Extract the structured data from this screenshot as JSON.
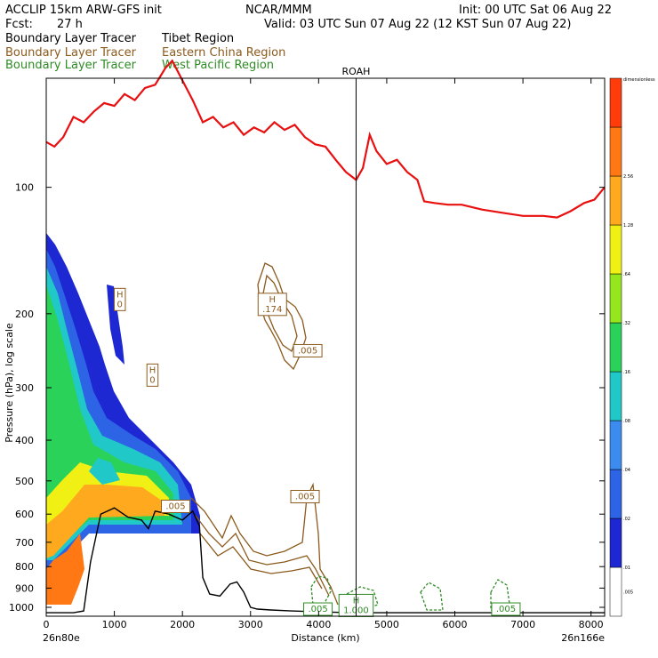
{
  "header": {
    "model": "ACCLIP 15km ARW-GFS init",
    "org": "NCAR/MMM",
    "init": "Init: 00 UTC Sat 06 Aug 22",
    "fcst_label": "Fcst:",
    "fcst_value": "27 h",
    "valid": "Valid: 03 UTC Sun 07 Aug 22 (12 KST Sun 07 Aug 22)"
  },
  "legend": [
    {
      "left": "Boundary Layer Tracer",
      "right": "Tibet Region",
      "color": "#000000"
    },
    {
      "left": "Boundary Layer Tracer",
      "right": "Eastern China Region",
      "color": "#8b5a1c"
    },
    {
      "left": "Boundary Layer Tracer",
      "right": "West Pacific Region",
      "color": "#2e8b24"
    }
  ],
  "chart_data": {
    "type": "cross-section",
    "xlabel": "Distance (km)",
    "ylabel": "Pressure (hPa), log scale",
    "xlim": [
      0,
      8200
    ],
    "ylim": [
      1050,
      55
    ],
    "y_scale": "log",
    "x_ticks": [
      0,
      1000,
      2000,
      3000,
      4000,
      5000,
      6000,
      7000,
      8000
    ],
    "x_tick_labels": [
      "0",
      "1000",
      "2000",
      "3000",
      "4000",
      "5000",
      "6000",
      "7000",
      "8000"
    ],
    "y_ticks": [
      100,
      200,
      300,
      400,
      500,
      600,
      700,
      800,
      900,
      1000
    ],
    "y_tick_labels": [
      "100",
      "200",
      "300",
      "400",
      "500",
      "600",
      "700",
      "800",
      "900",
      "1000"
    ],
    "endpoint_left": "26n80e",
    "endpoint_right": "26n166e",
    "vertical_marker": {
      "x": 4550,
      "label": "ROAH"
    },
    "colorbar": {
      "title": "dimensionless",
      "labels": [
        ".005",
        ".01",
        ".02",
        ".04",
        ".08",
        ".16",
        ".32",
        ".64",
        "1.28",
        "2.56"
      ],
      "colors": [
        "#ffffff",
        "#1e28d2",
        "#2d64e6",
        "#3c8cf0",
        "#20c8c8",
        "#2ad25a",
        "#96e61e",
        "#f0f014",
        "#ffaa1e",
        "#ff7814",
        "#ff3c0a"
      ]
    },
    "tropopause": [
      [
        0,
        78
      ],
      [
        120,
        80
      ],
      [
        250,
        76
      ],
      [
        400,
        68
      ],
      [
        550,
        70
      ],
      [
        700,
        66
      ],
      [
        850,
        63
      ],
      [
        1000,
        64
      ],
      [
        1150,
        60
      ],
      [
        1300,
        62
      ],
      [
        1450,
        58
      ],
      [
        1600,
        57
      ],
      [
        1750,
        52
      ],
      [
        1850,
        50
      ],
      [
        2150,
        62
      ],
      [
        2300,
        70
      ],
      [
        2450,
        68
      ],
      [
        2600,
        72
      ],
      [
        2750,
        70
      ],
      [
        2900,
        75
      ],
      [
        3050,
        72
      ],
      [
        3200,
        74
      ],
      [
        3350,
        70
      ],
      [
        3500,
        73
      ],
      [
        3650,
        71
      ],
      [
        3800,
        76
      ],
      [
        3950,
        79
      ],
      [
        4100,
        80
      ],
      [
        4250,
        86
      ],
      [
        4400,
        92
      ],
      [
        4550,
        96
      ],
      [
        4650,
        90
      ],
      [
        4750,
        75
      ],
      [
        4850,
        82
      ],
      [
        5000,
        88
      ],
      [
        5150,
        86
      ],
      [
        5300,
        92
      ],
      [
        5450,
        96
      ],
      [
        5550,
        108
      ],
      [
        5700,
        109
      ],
      [
        5900,
        110
      ],
      [
        6100,
        110
      ],
      [
        6400,
        113
      ],
      [
        6700,
        115
      ],
      [
        7000,
        117
      ],
      [
        7300,
        117
      ],
      [
        7500,
        118
      ],
      [
        7700,
        114
      ],
      [
        7900,
        109
      ],
      [
        8050,
        107
      ],
      [
        8200,
        100
      ]
    ],
    "terrain": [
      [
        0,
        1030
      ],
      [
        200,
        1030
      ],
      [
        400,
        1030
      ],
      [
        550,
        1020
      ],
      [
        650,
        780
      ],
      [
        800,
        600
      ],
      [
        1000,
        580
      ],
      [
        1200,
        610
      ],
      [
        1400,
        620
      ],
      [
        1500,
        650
      ],
      [
        1600,
        590
      ],
      [
        1800,
        600
      ],
      [
        2000,
        620
      ],
      [
        2150,
        590
      ],
      [
        2250,
        640
      ],
      [
        2300,
        850
      ],
      [
        2400,
        930
      ],
      [
        2550,
        940
      ],
      [
        2700,
        880
      ],
      [
        2800,
        870
      ],
      [
        2900,
        920
      ],
      [
        3000,
        1000
      ],
      [
        3100,
        1010
      ],
      [
        3300,
        1015
      ],
      [
        3600,
        1020
      ],
      [
        4000,
        1025
      ],
      [
        4500,
        1030
      ],
      [
        5000,
        1030
      ],
      [
        6000,
        1030
      ],
      [
        7000,
        1030
      ],
      [
        8000,
        1030
      ],
      [
        8200,
        1030
      ]
    ],
    "labels": [
      {
        "x": 1080,
        "p": 185,
        "text": "H\n0",
        "color": "#8b5a1c"
      },
      {
        "x": 1560,
        "p": 280,
        "text": "H\n0",
        "color": "#8b5a1c"
      },
      {
        "x": 3320,
        "p": 190,
        "text": "H\n.174",
        "color": "#8b5a1c"
      },
      {
        "x": 3840,
        "p": 245,
        "text": ".005",
        "color": "#8b5a1c"
      },
      {
        "x": 1900,
        "p": 575,
        "text": ".005",
        "color": "#8b5a1c"
      },
      {
        "x": 3800,
        "p": 545,
        "text": ".005",
        "color": "#8b5a1c"
      },
      {
        "x": 3990,
        "p": 1010,
        "text": ".005",
        "color": "#2e8b24"
      },
      {
        "x": 4550,
        "p": 990,
        "text": "H\n1.000",
        "color": "#2e8b24"
      },
      {
        "x": 6750,
        "p": 1010,
        "text": ".005",
        "color": "#2e8b24"
      }
    ]
  }
}
